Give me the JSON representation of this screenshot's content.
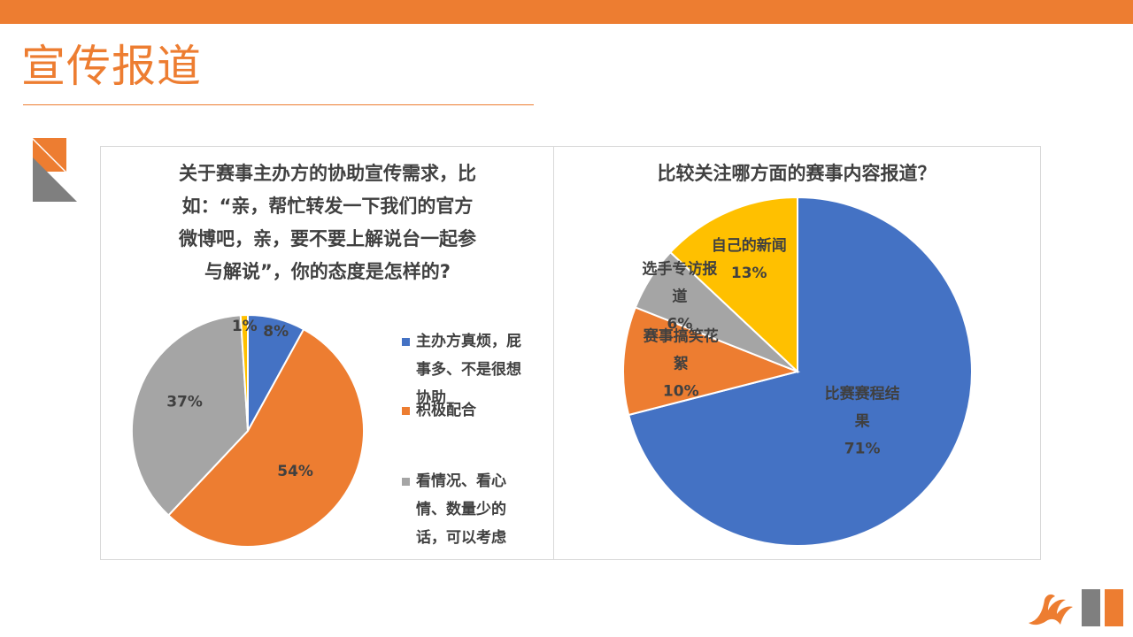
{
  "page": {
    "title": "宣传报道"
  },
  "colors": {
    "accent": "#ED7D31",
    "blue": "#4472C4",
    "orange": "#ED7D31",
    "gray": "#A5A5A5",
    "yellow": "#FFC000",
    "dark_gray": "#7F7F7F"
  },
  "chart_data": [
    {
      "type": "pie",
      "title_lines": [
        "关于赛事主办方的协助宣传需求，比",
        "如：“亲，帮忙转发一下我们的官方",
        "微博吧，亲，要不要上解说台一起参",
        "与解说”，你的态度是怎样的?"
      ],
      "slices": [
        {
          "label": "主办方真烦，屁事多、不是很想协助",
          "legend_lines": [
            "主办方真烦，屁",
            "事多、不是很想",
            "协助"
          ],
          "value": 8,
          "display": "8%",
          "color": "#4472C4"
        },
        {
          "label": "积极配合",
          "legend_lines": [
            "积极配合"
          ],
          "value": 54,
          "display": "54%",
          "color": "#ED7D31"
        },
        {
          "label": "看情况、看心情、数量少的话，可以考虑",
          "legend_lines": [
            "看情况、看心",
            "情、数量少的",
            "话，可以考虑"
          ],
          "value": 37,
          "display": "37%",
          "color": "#A5A5A5"
        },
        {
          "label": "",
          "legend_lines": [],
          "value": 1,
          "display": "1%",
          "color": "#FFC000"
        }
      ],
      "legend_position": "right"
    },
    {
      "type": "pie",
      "title": "比较关注哪方面的赛事内容报道？",
      "slices": [
        {
          "label": "比赛赛程结果",
          "label_lines": [
            "比赛赛程结",
            "果"
          ],
          "value": 71,
          "display": "71%",
          "color": "#4472C4"
        },
        {
          "label": "赛事搞笑花絮",
          "label_lines": [
            "赛事搞笑花",
            "絮"
          ],
          "value": 10,
          "display": "10%",
          "color": "#ED7D31"
        },
        {
          "label": "选手专访报道",
          "label_lines": [
            "选手专访报",
            "道"
          ],
          "value": 6,
          "display": "6%",
          "color": "#A5A5A5"
        },
        {
          "label": "自己的新闻",
          "label_lines": [
            "自己的新闻"
          ],
          "value": 13,
          "display": "13%",
          "color": "#FFC000"
        }
      ],
      "legend_position": "none"
    }
  ]
}
